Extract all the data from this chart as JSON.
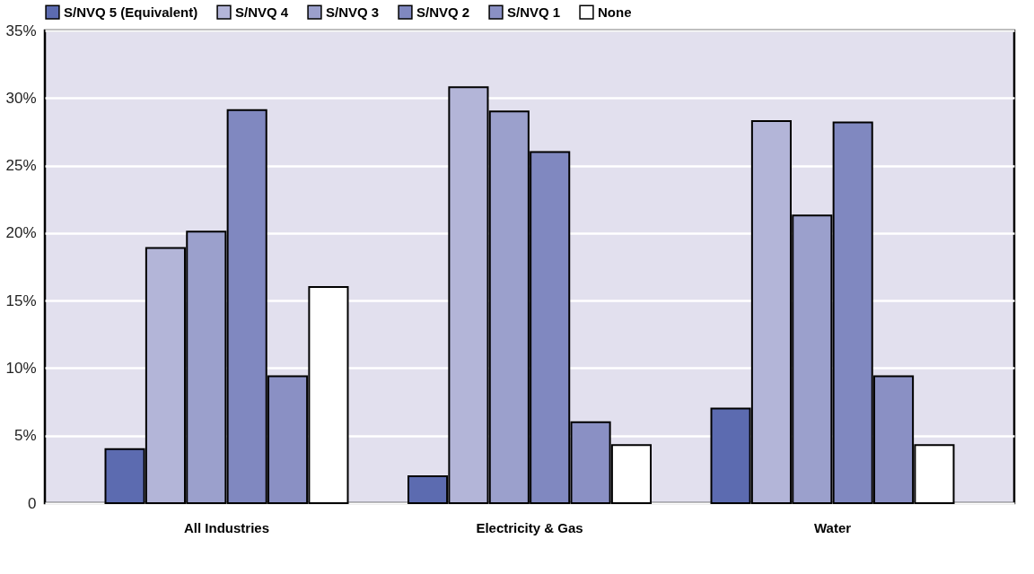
{
  "chart_data": {
    "type": "bar",
    "categories": [
      "All Industries",
      "Electricity & Gas",
      "Water"
    ],
    "series": [
      {
        "name": "S/NVQ 5 (Equivalent)",
        "color": "#5c6bb0",
        "values": [
          4.0,
          2.0,
          7.0
        ]
      },
      {
        "name": "S/NVQ 4",
        "color": "#b3b5d8",
        "values": [
          18.9,
          30.8,
          28.3
        ]
      },
      {
        "name": "S/NVQ 3",
        "color": "#9ba0cc",
        "values": [
          20.1,
          29.0,
          21.3
        ]
      },
      {
        "name": "S/NVQ 2",
        "color": "#8088c0",
        "values": [
          29.1,
          26.0,
          28.2
        ]
      },
      {
        "name": "S/NVQ 1",
        "color": "#8a90c4",
        "values": [
          9.4,
          6.0,
          9.4
        ]
      },
      {
        "name": "None",
        "color": "#ffffff",
        "values": [
          16.0,
          4.3,
          4.3
        ]
      }
    ],
    "ylim": [
      0,
      35
    ],
    "yticks": [
      0,
      {
        "value": 5,
        "label": "5%"
      },
      {
        "value": 10,
        "label": "10%"
      },
      {
        "value": 15,
        "label": "15%"
      },
      {
        "value": 20,
        "label": "20%"
      },
      {
        "value": 25,
        "label": "25%"
      },
      {
        "value": 30,
        "label": "30%"
      },
      {
        "value": 35,
        "label": "35%"
      }
    ],
    "grid": "y",
    "legend": "top left"
  }
}
